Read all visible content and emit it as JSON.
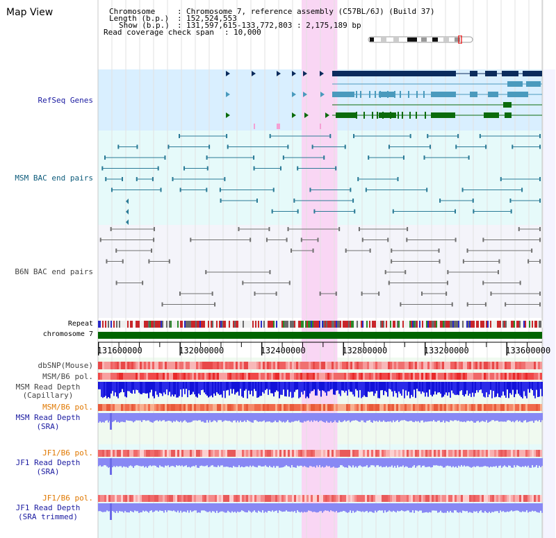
{
  "page": {
    "title": "Map View"
  },
  "header": {
    "chromosome_label": "Chromosome",
    "chromosome_value": "Chromosome 7, reference assembly (C57BL/6J) (Build 37)",
    "length_label": "Length (b.p.)",
    "length_value": "152,524,553",
    "show_label": "Show (b.p.)",
    "show_value": "131,597,615-133,772,803 : 2,175,189 bp",
    "coverage_label": "Read coverage check span",
    "coverage_value": "10,000"
  },
  "tracks": {
    "refseq": "RefSeq Genes",
    "msm_bac": "MSM BAC end pairs",
    "b6n_bac": "B6N BAC end pairs",
    "repeat": "Repeat",
    "chromosome": "chromosome 7",
    "dbsnp": "dbSNP(Mouse)",
    "msm_b6_pol_1": "MSM/B6 pol.",
    "msm_depth_cap_1": "MSM Read Depth",
    "msm_depth_cap_2": "(Capillary)",
    "msm_b6_pol_2": "MSM/B6 pol.",
    "msm_depth_sra_1": "MSM Read Depth",
    "msm_depth_sra_2": "(SRA)",
    "jf1_pol_1": "JF1/B6 pol.",
    "jf1_depth_sra_1": "JF1 Read Depth",
    "jf1_depth_sra_2": "(SRA)",
    "jf1_pol_2": "JF1/B6 pol.",
    "jf1_depth_trim_1": "JF1 Read Depth",
    "jf1_depth_trim_2": "(SRA trimmed)"
  },
  "axis": {
    "ticks": [
      "131600000",
      "132000000",
      "132400000",
      "132800000",
      "133200000",
      "133600000"
    ],
    "tick_values": [
      131600000,
      132000000,
      132400000,
      132800000,
      133200000,
      133600000
    ],
    "start": 131597615,
    "end": 133772803
  },
  "highlight": {
    "start": 132595000,
    "end": 132770000
  },
  "colors": {
    "refseq_bg": "#d9efff",
    "msm_bg": "#e6fafa",
    "b6n_bg": "#f4f4fa",
    "highlight": "#f9d6f4",
    "gene_dark": "#0b2b5c",
    "gene_mid": "#4a9abd",
    "gene_green": "#0b6b0b",
    "chromosome_bar": "#006400",
    "label_blue": "#1a1aa0",
    "label_orange": "#e07800"
  }
}
